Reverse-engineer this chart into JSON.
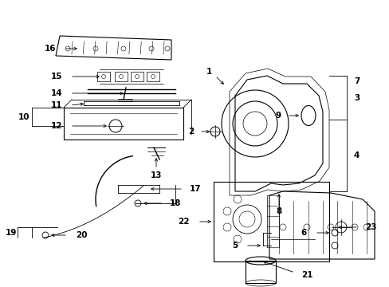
{
  "bg_color": "#ffffff",
  "fg_color": "#000000",
  "fig_width": 4.89,
  "fig_height": 3.6,
  "dpi": 100
}
